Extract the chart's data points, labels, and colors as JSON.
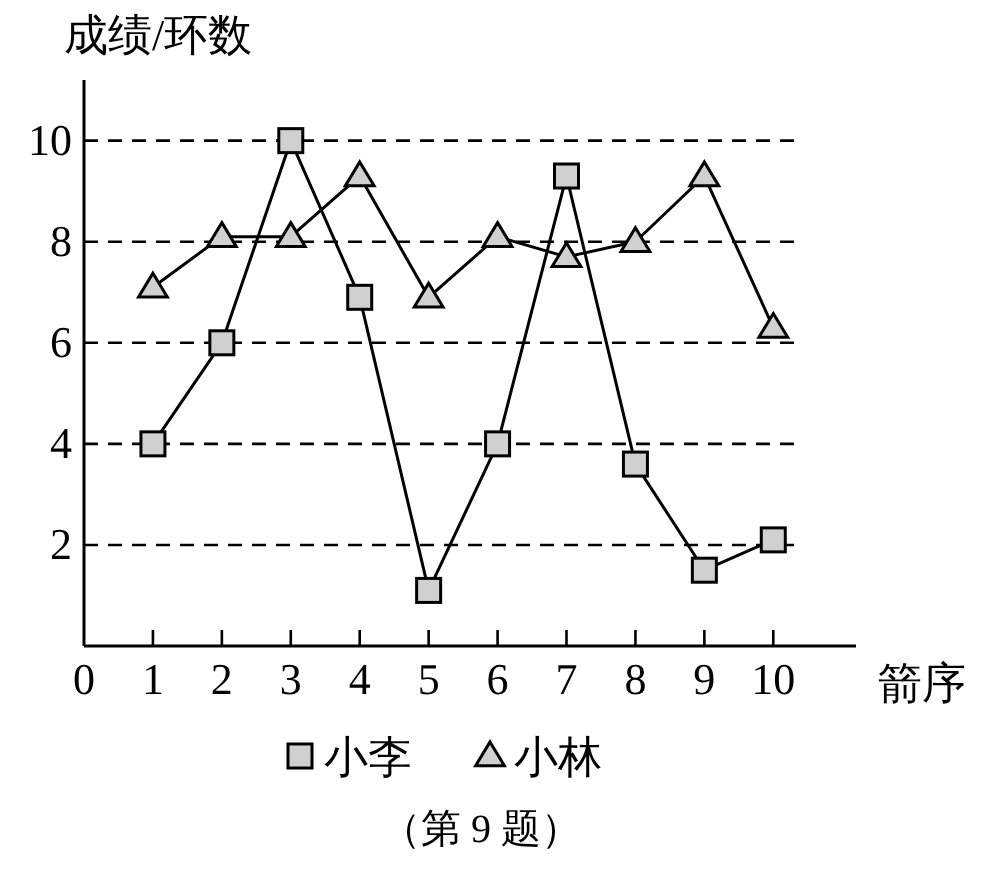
{
  "chart_data": {
    "type": "line",
    "ylabel": "成绩/环数",
    "xlabel": "箭序",
    "x": [
      1,
      2,
      3,
      4,
      5,
      6,
      7,
      8,
      9,
      10
    ],
    "series": [
      {
        "name": "小李",
        "color": "#000000",
        "marker": "square",
        "values": [
          4,
          6,
          10,
          6.9,
          1.1,
          4,
          9.3,
          3.6,
          1.5,
          2.1
        ]
      },
      {
        "name": "小林",
        "color": "#000000",
        "marker": "triangle",
        "values": [
          7.1,
          8.1,
          8.1,
          9.3,
          6.9,
          8.1,
          7.7,
          8,
          9.3,
          6.3
        ]
      }
    ],
    "xlim": [
      0,
      11.2
    ],
    "xticks": [
      0,
      1,
      2,
      3,
      4,
      5,
      6,
      7,
      8,
      9,
      10
    ],
    "ylim": [
      0,
      11.2
    ],
    "yticks": [
      2,
      4,
      6,
      8,
      10
    ],
    "grid": "y",
    "legend": "bottom",
    "line_style": "solid",
    "annotations": [
      "（第 9 题）"
    ]
  }
}
